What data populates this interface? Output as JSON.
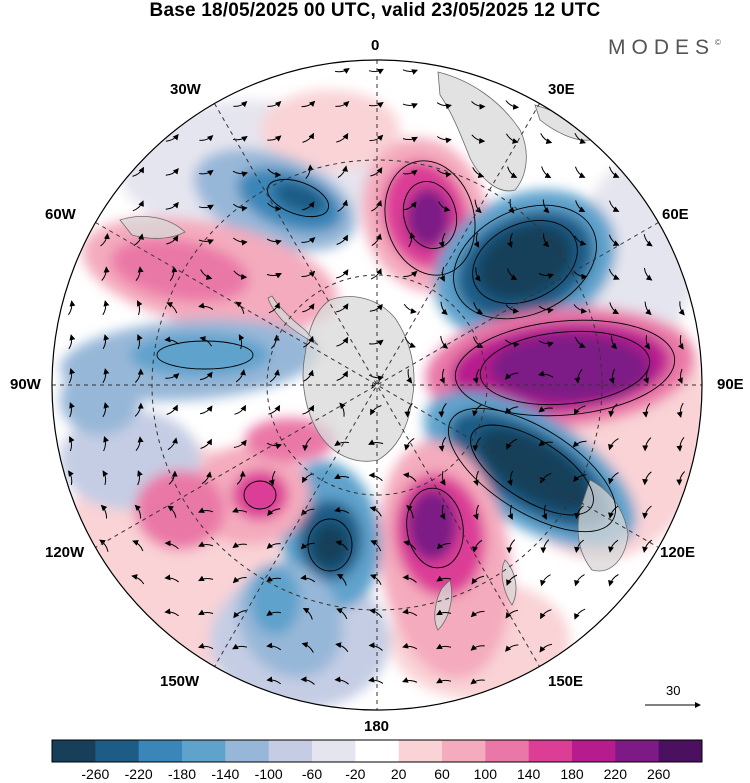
{
  "title": "Base 18/05/2025 00 UTC, valid 23/05/2025 12 UTC",
  "brand": "MODES",
  "brand_mark": "©",
  "longitude_labels": {
    "lon_0": "0",
    "lon_30e": "30E",
    "lon_60e": "60E",
    "lon_90e": "90E",
    "lon_120e": "120E",
    "lon_150e": "150E",
    "lon_180": "180",
    "lon_150w": "150W",
    "lon_120w": "120W",
    "lon_90w": "90W",
    "lon_60w": "60W",
    "lon_30w": "30W"
  },
  "reference_vector": {
    "label": "30"
  },
  "colorbar": {
    "labels": [
      "-260",
      "-220",
      "-180",
      "-140",
      "-100",
      "-60",
      "-20",
      "20",
      "60",
      "100",
      "140",
      "180",
      "220",
      "260"
    ],
    "colors": [
      "#173f5a",
      "#1d5c86",
      "#3a86b8",
      "#5fa2cc",
      "#97b7d8",
      "#c5cde4",
      "#e5e5ef",
      "#ffffff",
      "#f9d3d6",
      "#f4abbd",
      "#ea78a7",
      "#dc3e96",
      "#b71c8e",
      "#7d1a86",
      "#4b1060"
    ]
  },
  "map": {
    "projection": "south-polar-stereographic",
    "field_colors": {
      "strong_negative": "#173f5a",
      "mid_negative": "#3a86b8",
      "weak_negative": "#97b7d8",
      "faint_negative": "#e5e5ef",
      "faint_positive": "#f9d3d6",
      "weak_positive": "#f4abbd",
      "mid_positive": "#dc3e96",
      "strong_positive": "#7d1a86",
      "land": "#d8d8d8"
    }
  }
}
